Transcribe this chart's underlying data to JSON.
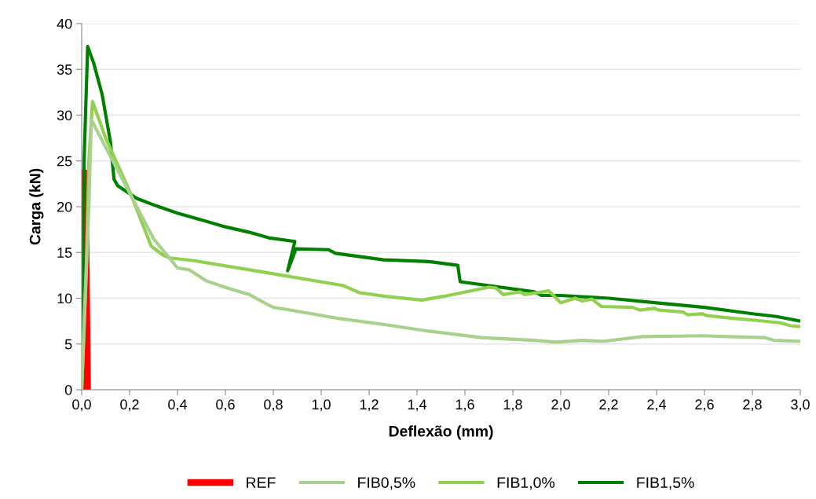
{
  "chart_data": {
    "type": "line",
    "xlabel": "Deflexão (mm)",
    "ylabel": "Carga (kN)",
    "xlim": [
      0,
      3
    ],
    "ylim": [
      0,
      40
    ],
    "xticks": [
      {
        "value": 0,
        "label": "0,0"
      },
      {
        "value": 0.2,
        "label": "0,2"
      },
      {
        "value": 0.4,
        "label": "0,4"
      },
      {
        "value": 0.6,
        "label": "0,6"
      },
      {
        "value": 0.8,
        "label": "0,8"
      },
      {
        "value": 1.0,
        "label": "1,0"
      },
      {
        "value": 1.2,
        "label": "1,2"
      },
      {
        "value": 1.4,
        "label": "1,4"
      },
      {
        "value": 1.6,
        "label": "1,6"
      },
      {
        "value": 1.8,
        "label": "1,8"
      },
      {
        "value": 2.0,
        "label": "2,0"
      },
      {
        "value": 2.2,
        "label": "2,2"
      },
      {
        "value": 2.4,
        "label": "2,4"
      },
      {
        "value": 2.6,
        "label": "2,6"
      },
      {
        "value": 2.8,
        "label": "2,8"
      },
      {
        "value": 3.0,
        "label": "3,0"
      }
    ],
    "yticks": [
      0,
      5,
      10,
      15,
      20,
      25,
      30,
      35,
      40
    ],
    "grid": "y",
    "legend": "bottom",
    "marker": "none",
    "line_style": "solid",
    "series": [
      {
        "name": "REF",
        "color": "#ff0000",
        "x": [
          0,
          0.005,
          0.015,
          0.025
        ],
        "values": [
          0,
          23.7,
          23.7,
          0
        ]
      },
      {
        "name": "FIB0,5%",
        "color": "#a9d18e",
        "x": [
          0,
          0.03,
          0.04,
          0.1,
          0.2,
          0.3,
          0.4,
          0.45,
          0.52,
          0.61,
          0.7,
          0.77,
          0.8,
          0.85,
          1.07,
          1.27,
          1.45,
          1.67,
          1.89,
          1.98,
          2.09,
          2.18,
          2.34,
          2.59,
          2.7,
          2.85,
          2.89,
          3.0
        ],
        "values": [
          0,
          20,
          29.5,
          26.5,
          21.5,
          16.5,
          13.3,
          13.1,
          11.9,
          11.1,
          10.4,
          9.4,
          9.0,
          8.8,
          7.8,
          7.1,
          6.4,
          5.7,
          5.4,
          5.2,
          5.4,
          5.3,
          5.8,
          5.9,
          5.8,
          5.7,
          5.4,
          5.3
        ]
      },
      {
        "name": "FIB1,0%",
        "color": "#92d050",
        "x": [
          0,
          0.02,
          0.03,
          0.045,
          0.1,
          0.2,
          0.29,
          0.34,
          0.37,
          0.47,
          0.77,
          1.09,
          1.16,
          1.27,
          1.42,
          1.51,
          1.7,
          1.73,
          1.76,
          1.83,
          1.85,
          1.95,
          2.0,
          2.06,
          2.09,
          2.13,
          2.17,
          2.3,
          2.33,
          2.39,
          2.41,
          2.51,
          2.53,
          2.59,
          2.61,
          2.72,
          2.81,
          2.92,
          2.96,
          3.0
        ],
        "values": [
          0,
          14,
          25,
          31.5,
          27.5,
          21.7,
          15.7,
          14.7,
          14.4,
          14.1,
          12.8,
          11.4,
          10.6,
          10.2,
          9.8,
          10.2,
          11.2,
          11.1,
          10.4,
          10.7,
          10.4,
          10.8,
          9.5,
          10.0,
          9.7,
          9.9,
          9.1,
          9.0,
          8.7,
          8.9,
          8.7,
          8.5,
          8.2,
          8.3,
          8.1,
          7.8,
          7.6,
          7.3,
          7.0,
          6.9
        ]
      },
      {
        "name": "FIB1,5%",
        "color": "#008000",
        "x": [
          0,
          0.01,
          0.025,
          0.05,
          0.085,
          0.12,
          0.135,
          0.15,
          0.23,
          0.31,
          0.4,
          0.6,
          0.7,
          0.78,
          0.89,
          0.86,
          0.895,
          1.03,
          1.06,
          1.26,
          1.45,
          1.57,
          1.58,
          1.89,
          1.92,
          2.0,
          2.2,
          2.4,
          2.6,
          2.8,
          2.9,
          3.0
        ],
        "values": [
          0,
          25,
          37.5,
          35.7,
          32.3,
          27.1,
          23.0,
          22.3,
          20.9,
          20.1,
          19.3,
          17.8,
          17.2,
          16.6,
          16.2,
          13.0,
          15.4,
          15.3,
          14.9,
          14.2,
          14.0,
          13.6,
          11.8,
          10.7,
          10.3,
          10.3,
          10.0,
          9.5,
          9.0,
          8.3,
          8.0,
          7.5
        ]
      }
    ]
  }
}
